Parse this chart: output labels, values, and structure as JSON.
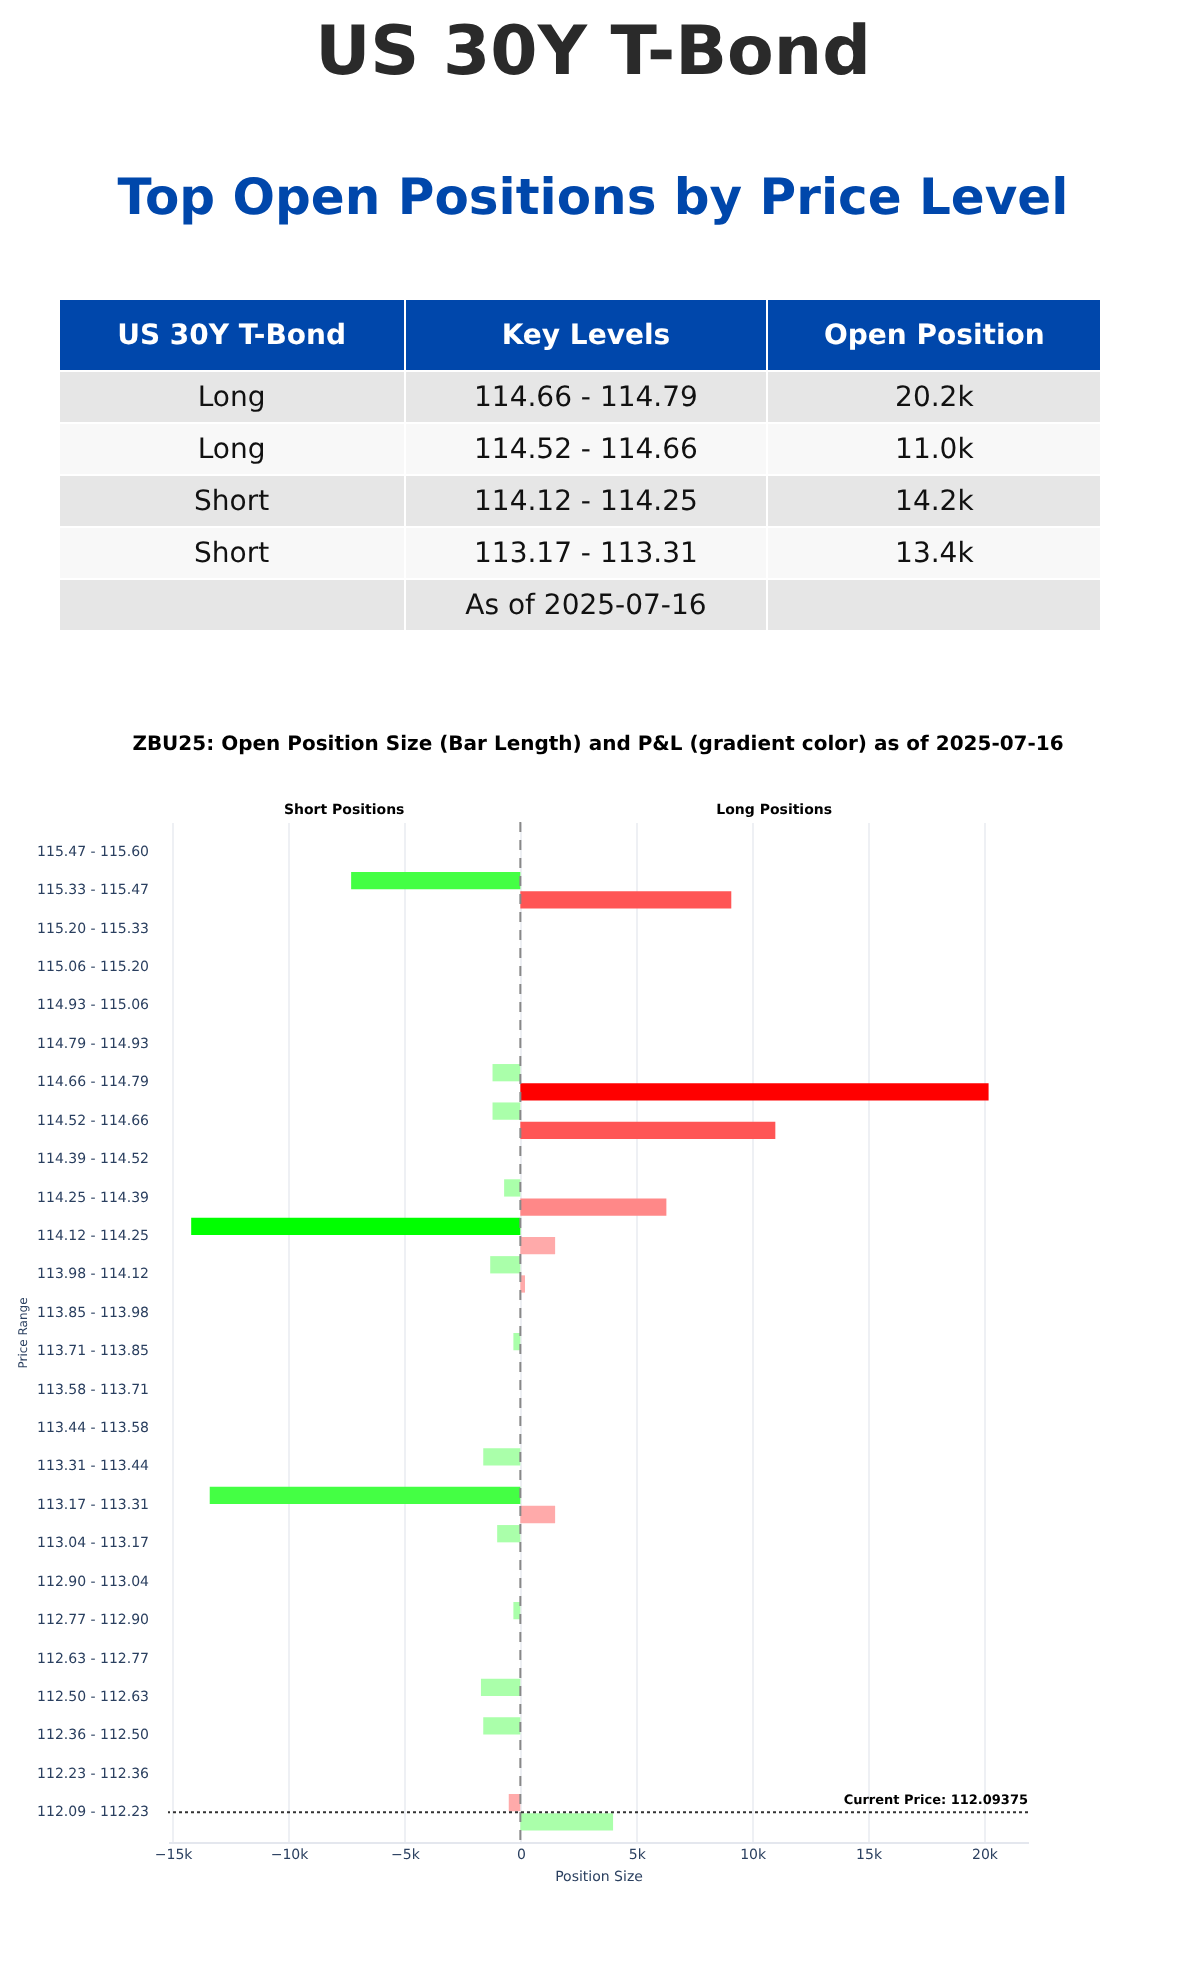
{
  "chart_data": [
    {
      "type": "other",
      "title": "US 30Y T-Bond",
      "subtitle": "Top Open Positions by Price Level",
      "categories": [
        "US 30Y T-Bond",
        "Key Levels",
        "Open Position"
      ],
      "annotations": [
        "Long",
        "114.66 - 114.79",
        "20.2k",
        "Long",
        "114.52 - 114.66",
        "11.0k",
        "Short",
        "114.12 - 114.25",
        "14.2k",
        "Short",
        "113.17 - 113.31",
        "13.4k",
        null,
        "As of 2025-07-16",
        null
      ]
    },
    {
      "type": "bar",
      "orientation": "horizontal",
      "title": "ZBU25: Open Position Size (Bar Length) and P&L (gradient color) as of 2025-07-16",
      "xlabel": "Position Size",
      "ylabel": "Price Range",
      "categories": [
        "115.47 - 115.60",
        "115.33 - 115.47",
        "115.20 - 115.33",
        "115.06 - 115.20",
        "114.93 - 115.06",
        "114.79 - 114.93",
        "114.66 - 114.79",
        "114.52 - 114.66",
        "114.39 - 114.52",
        "114.25 - 114.39",
        "114.12 - 114.25",
        "113.98 - 114.12",
        "113.85 - 113.98",
        "113.71 - 113.85",
        "113.58 - 113.71",
        "113.44 - 113.58",
        "113.31 - 113.44",
        "113.17 - 113.31",
        "113.04 - 113.17",
        "112.90 - 113.04",
        "112.77 - 112.90",
        "112.63 - 112.77",
        "112.50 - 112.63",
        "112.36 - 112.50",
        "112.23 - 112.36",
        "112.09 - 112.23"
      ],
      "series": [
        {
          "values": [
            null,
            -7300,
            null,
            null,
            null,
            null,
            -1200,
            -1200,
            null,
            -700,
            -14200,
            -1300,
            null,
            -300,
            null,
            null,
            -1600,
            -13400,
            -1000,
            null,
            -300,
            null,
            -1700,
            -1600,
            null,
            -500
          ],
          "colors": [
            null,
            "#44ff44",
            null,
            null,
            null,
            null,
            "#aaffaa",
            "#aaffaa",
            null,
            "#aaffaa",
            "#00ff00",
            "#aaffaa",
            null,
            "#aaffaa",
            null,
            null,
            "#aaffaa",
            "#44ff44",
            "#aaffaa",
            null,
            "#aaffaa",
            null,
            "#aaffaa",
            "#aaffaa",
            null,
            "#ffaaaa"
          ]
        },
        {
          "values": [
            null,
            9100,
            null,
            null,
            null,
            null,
            20200,
            11000,
            null,
            6300,
            1500,
            200,
            null,
            null,
            null,
            null,
            null,
            1500,
            null,
            null,
            null,
            null,
            null,
            null,
            null,
            4000
          ],
          "colors": [
            null,
            "#ff5555",
            null,
            null,
            null,
            null,
            "#ff0000",
            "#ff5555",
            null,
            "#ff8888",
            "#ffaaaa",
            "#ffaaaa",
            null,
            null,
            null,
            null,
            null,
            "#ffaaaa",
            null,
            null,
            null,
            null,
            null,
            null,
            null,
            "#aaffaa"
          ]
        }
      ],
      "xlim": [
        -15200,
        21900
      ],
      "xticks": [
        {
          "value": -15000,
          "label": "−15k"
        },
        {
          "value": -10000,
          "label": "−10k"
        },
        {
          "value": -5000,
          "label": "−5k"
        },
        0,
        {
          "value": 5000,
          "label": "5k"
        },
        {
          "value": 10000,
          "label": "10k"
        },
        {
          "value": 15000,
          "label": "15k"
        },
        {
          "value": 20000,
          "label": "20k"
        }
      ],
      "grid": "x",
      "ref_lines": [
        {
          "axis": "x",
          "value": 0,
          "line_style": "dashed",
          "color": "#888888"
        },
        {
          "axis": "y",
          "value": "112.09 - 112.23",
          "label": "Current Price: 112.09375",
          "line_style": "dotted",
          "color": "#333333"
        }
      ],
      "annotations": [
        "Short Positions",
        "Long Positions"
      ]
    }
  ]
}
